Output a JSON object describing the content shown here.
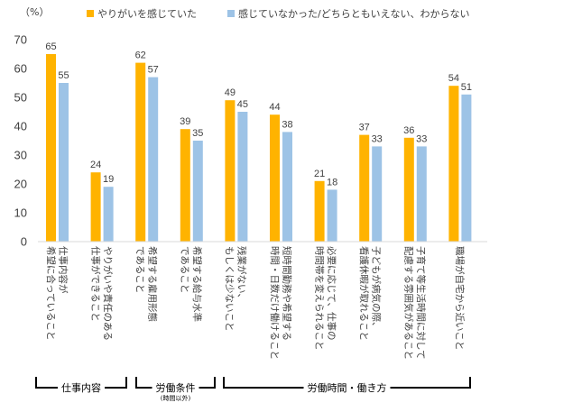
{
  "chart_data": {
    "type": "bar",
    "unit_label": "（%）",
    "ylim": [
      0,
      70
    ],
    "yticks": [
      0,
      10,
      20,
      30,
      40,
      50,
      60,
      70
    ],
    "grid": false,
    "legend_position": "top",
    "categories": [
      [
        "希望に合っていること",
        "仕事内容が"
      ],
      [
        "仕事ができること",
        "やりがいや責任のある"
      ],
      [
        "であること",
        "希望する雇用形態"
      ],
      [
        "であること",
        "希望する給与水準"
      ],
      [
        "もしくは少ないこと",
        "残業がない、"
      ],
      [
        "時間・日数だけ働けること",
        "短時間勤務や希望する"
      ],
      [
        "時間帯を変えられること",
        "必要に応じて、仕事の"
      ],
      [
        "看護休暇が取れること",
        "子どもが病気の際、"
      ],
      [
        "配慮する雰囲気があること",
        "子育て等生活時間に対して"
      ],
      [
        "職場が自宅から近いこと"
      ]
    ],
    "series": [
      {
        "name": "やりがいを感じていた",
        "color": "#FFB300",
        "values": [
          65,
          24,
          62,
          39,
          49,
          44,
          21,
          37,
          36,
          54
        ]
      },
      {
        "name": "感じていなかった/どちらともいえない、わからない",
        "color": "#9DC3E6",
        "values": [
          55,
          19,
          57,
          35,
          45,
          38,
          18,
          33,
          33,
          51
        ]
      }
    ],
    "groups": [
      {
        "label": "仕事内容",
        "sub": "",
        "from": 0,
        "to": 1
      },
      {
        "label": "労働条件",
        "sub": "(時間以外)",
        "from": 2,
        "to": 3
      },
      {
        "label": "労働時間・働き方",
        "sub": "",
        "from": 4,
        "to": 9
      }
    ]
  }
}
